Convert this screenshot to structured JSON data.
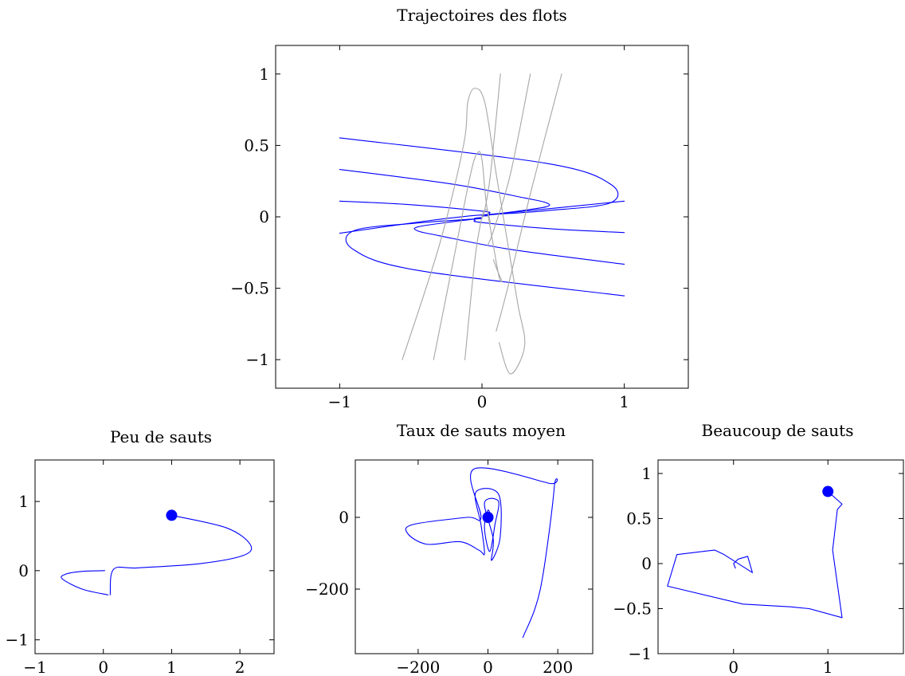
{
  "colors": {
    "trajectory": "#0000ff",
    "flow_line": "#a6a6a6",
    "marker": "#0000ff",
    "axis": "#000000"
  },
  "chart_data": [
    {
      "type": "line",
      "title": "Trajectoires des flots",
      "xlabel": "",
      "ylabel": "",
      "xlim": [
        -1.45,
        1.45
      ],
      "ylim": [
        -1.2,
        1.2
      ],
      "xticks": [
        -1,
        0,
        1
      ],
      "xtick_labels": [
        "−1",
        "0",
        "1"
      ],
      "yticks": [
        -1,
        -0.5,
        0,
        0.5,
        1
      ],
      "ytick_labels": [
        "−1",
        "−0.5",
        "0",
        "0.5",
        "1"
      ],
      "grid": false,
      "series": [
        {
          "color": "#0000ff",
          "x": [
            -1,
            0.45,
            0.9,
            0.9,
            0.45,
            0.1,
            0
          ],
          "y": [
            0.553,
            0.375,
            0.231,
            0.097,
            0.043,
            0.018,
            0.012
          ]
        },
        {
          "color": "#0000ff",
          "x": [
            -1,
            -0.2,
            0.3,
            0.45,
            0.45,
            0.2,
            0
          ],
          "y": [
            0.332,
            0.228,
            0.132,
            0.099,
            0.07,
            0.033,
            0.01
          ]
        },
        {
          "color": "#0000ff",
          "x": [
            -1,
            -0.5,
            0,
            0.05,
            0.05,
            0
          ],
          "y": [
            0.11,
            0.085,
            0.04,
            0.025,
            0.01,
            0.005
          ]
        },
        {
          "color": "#0000ff",
          "x": [
            1,
            -0.45,
            -0.9,
            -0.9,
            -0.45,
            -0.1,
            0
          ],
          "y": [
            -0.553,
            -0.375,
            -0.231,
            -0.097,
            -0.043,
            -0.018,
            -0.012
          ]
        },
        {
          "color": "#0000ff",
          "x": [
            1,
            0.2,
            -0.3,
            -0.45,
            -0.45,
            -0.2,
            0
          ],
          "y": [
            -0.332,
            -0.228,
            -0.132,
            -0.099,
            -0.07,
            -0.033,
            -0.01
          ]
        },
        {
          "color": "#0000ff",
          "x": [
            1,
            0.5,
            0,
            -0.05,
            -0.05,
            0
          ],
          "y": [
            -0.11,
            -0.085,
            -0.04,
            -0.025,
            -0.01,
            -0.005
          ]
        },
        {
          "color": "#0000ff",
          "x": [
            1,
            0.2,
            -0.1,
            -0.4,
            -1
          ],
          "y": [
            0.11,
            0.03,
            0.005,
            -0.03,
            -0.115
          ]
        },
        {
          "color": "#a6a6a6",
          "x": [
            -0.56,
            -0.3,
            -0.13,
            -0.1,
            -0.05,
            0.02,
            0.1,
            0.15,
            0.25,
            0.3,
            0.2,
            0.12
          ],
          "y": [
            -1,
            -0.2,
            0.5,
            0.8,
            0.9,
            0.8,
            0.3,
            0,
            -0.6,
            -0.9,
            -1.1,
            -0.88
          ]
        },
        {
          "color": "#a6a6a6",
          "x": [
            -0.34,
            -0.2,
            -0.08,
            -0.03,
            0,
            0.03,
            0.08,
            0.12,
            0.14,
            0.11,
            0.08
          ],
          "y": [
            -1,
            -0.3,
            0.3,
            0.45,
            0.4,
            0.1,
            -0.2,
            -0.42,
            -0.45,
            -0.38,
            -0.3
          ]
        },
        {
          "color": "#a6a6a6",
          "x": [
            -0.12,
            -0.05,
            0,
            0.03,
            0.05,
            0.06
          ],
          "y": [
            -1,
            -0.3,
            0,
            0.05,
            0,
            -0.05
          ]
        },
        {
          "color": "#a6a6a6",
          "x": [
            0.13,
            0.06,
            0.02,
            0.01
          ],
          "y": [
            1,
            0.3,
            0.05,
            0
          ]
        },
        {
          "color": "#a6a6a6",
          "x": [
            0.34,
            0.2,
            0.08,
            0.04
          ],
          "y": [
            1,
            0.3,
            -0.1,
            -0.2
          ]
        },
        {
          "color": "#a6a6a6",
          "x": [
            0.56,
            0.35,
            0.18,
            0.1
          ],
          "y": [
            1,
            0.2,
            -0.5,
            -0.8
          ]
        }
      ]
    },
    {
      "type": "line",
      "title": "Peu de sauts",
      "xlabel": "",
      "ylabel": "",
      "xlim": [
        -1,
        2.5
      ],
      "ylim": [
        -1.2,
        1.6
      ],
      "xticks": [
        -1,
        0,
        1,
        2
      ],
      "xtick_labels": [
        "−1",
        "0",
        "1",
        "2"
      ],
      "yticks": [
        -1,
        0,
        1
      ],
      "ytick_labels": [
        "−1",
        "0",
        "1"
      ],
      "grid": false,
      "marker": [
        1,
        0.8
      ],
      "series": [
        {
          "color": "#0000ff",
          "x": [
            1,
            1.8,
            2.15,
            2.05,
            1.4,
            0.5,
            0.15,
            0.1
          ],
          "y": [
            0.8,
            0.62,
            0.38,
            0.22,
            0.1,
            0.04,
            0.02,
            -0.35
          ]
        },
        {
          "color": "#0000ff",
          "x": [
            0.07,
            -0.3,
            -0.6,
            -0.55,
            -0.3,
            0.02
          ],
          "y": [
            -0.35,
            -0.27,
            -0.12,
            -0.05,
            -0.01,
            0
          ]
        }
      ]
    },
    {
      "type": "line",
      "title": "Taux de sauts moyen",
      "xlabel": "",
      "ylabel": "",
      "xlim": [
        -380,
        300
      ],
      "ylim": [
        -380,
        160
      ],
      "xticks": [
        -200,
        0,
        200
      ],
      "xtick_labels": [
        "−200",
        "0",
        "200"
      ],
      "yticks": [
        -200,
        0
      ],
      "ytick_labels": [
        "−200",
        "0"
      ],
      "grid": false,
      "marker": [
        0,
        0
      ],
      "series": [
        {
          "color": "#0000ff",
          "x": [
            100,
            150,
            190,
            175,
            -40,
            -20,
            -60,
            -215,
            -230,
            -175,
            -80,
            -25,
            -10,
            -20,
            -35,
            30,
            35,
            10,
            15,
            -10,
            30,
            20,
            5,
            -10,
            0,
            10
          ],
          "y": [
            -335,
            -200,
            85,
            95,
            135,
            0,
            0,
            -20,
            -45,
            -75,
            -68,
            -92,
            -100,
            -20,
            70,
            65,
            -55,
            -120,
            -60,
            40,
            45,
            -20,
            -95,
            -30,
            20,
            -5
          ]
        }
      ]
    },
    {
      "type": "line",
      "title": "Beaucoup de sauts",
      "xlabel": "",
      "ylabel": "",
      "xlim": [
        -0.8,
        1.8
      ],
      "ylim": [
        -1,
        1.15
      ],
      "xticks": [
        0,
        1
      ],
      "xtick_labels": [
        "0",
        "1"
      ],
      "yticks": [
        -1,
        -0.5,
        0,
        0.5,
        1
      ],
      "ytick_labels": [
        "−1",
        "−0.5",
        "0",
        "0.5",
        "1"
      ],
      "grid": false,
      "marker": [
        1,
        0.8
      ],
      "series": [
        {
          "color": "#0000ff",
          "x": [
            1,
            1.15,
            1.1,
            1.05,
            1.15,
            0.8,
            0.6,
            0.1,
            -0.7,
            -0.6,
            -0.2,
            -0.1,
            0.2,
            0.15,
            0.05,
            0,
            0.02,
            0
          ],
          "y": [
            0.8,
            0.66,
            0.6,
            0.15,
            -0.6,
            -0.5,
            -0.48,
            -0.45,
            -0.25,
            0.1,
            0.15,
            0.1,
            -0.1,
            0.08,
            0.05,
            0,
            -0.05,
            0
          ]
        }
      ]
    }
  ]
}
